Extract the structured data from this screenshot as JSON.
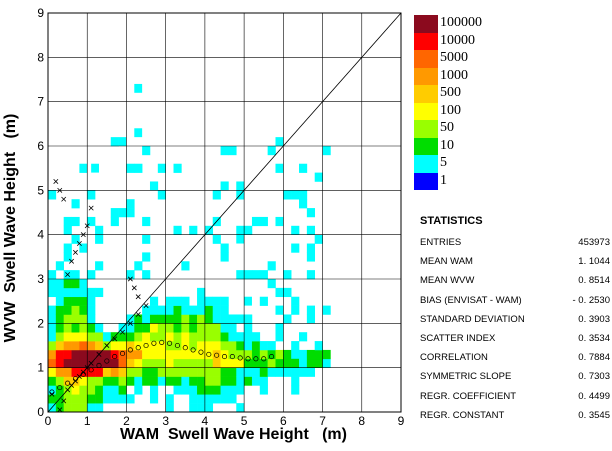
{
  "chart_data": {
    "type": "heatmap",
    "xlabel": "WAM  Swell Wave Height   (m)",
    "ylabel": "WVW  Swell Wave Height   (m)",
    "xlim": [
      0,
      9
    ],
    "ylim": [
      0,
      9
    ],
    "xticks": [
      "0",
      "1",
      "2",
      "3",
      "4",
      "5",
      "6",
      "7",
      "8",
      "9"
    ],
    "yticks": [
      "0",
      "1",
      "2",
      "3",
      "4",
      "5",
      "6",
      "7",
      "8",
      "9"
    ],
    "grid": true,
    "diagonal_line": true,
    "bin_size": 0.2,
    "colorbar": {
      "labels": [
        "100000",
        "10000",
        "5000",
        "1000",
        "500",
        "100",
        "50",
        "10",
        "5",
        "1"
      ],
      "colors": [
        "#8b0a1e",
        "#ff0000",
        "#ff6600",
        "#ff9900",
        "#ffcc00",
        "#ffff00",
        "#99ff00",
        "#00dd00",
        "#00ffff",
        "#0000ff"
      ]
    },
    "bin_mean_points": {
      "marker": "open-circle",
      "x": [
        0.1,
        0.3,
        0.5,
        0.7,
        0.9,
        1.1,
        1.3,
        1.5,
        1.7,
        1.9,
        2.1,
        2.3,
        2.5,
        2.7,
        2.9,
        3.1,
        3.3,
        3.5,
        3.7,
        3.9,
        4.1,
        4.3,
        4.5,
        4.7,
        4.9,
        5.1,
        5.3,
        5.5,
        5.7
      ],
      "y": [
        0.45,
        0.55,
        0.65,
        0.75,
        0.85,
        0.95,
        1.05,
        1.15,
        1.25,
        1.32,
        1.4,
        1.45,
        1.5,
        1.55,
        1.57,
        1.55,
        1.5,
        1.45,
        1.4,
        1.35,
        1.3,
        1.28,
        1.25,
        1.25,
        1.22,
        1.2,
        1.2,
        1.2,
        1.25
      ]
    },
    "bin_mean_crosses": {
      "marker": "x",
      "x": [
        0.1,
        0.3,
        0.4,
        0.5,
        0.6,
        0.7,
        0.8,
        0.9,
        1.0,
        1.1,
        1.3,
        1.5,
        1.7,
        1.9,
        2.1,
        2.3,
        2.5,
        0.5,
        0.6,
        0.7,
        0.8,
        0.9,
        1.0,
        1.1,
        0.4,
        0.3,
        0.2,
        2.2,
        2.3,
        2.1
      ],
      "y": [
        0.4,
        0.05,
        0.25,
        0.5,
        0.6,
        0.7,
        0.8,
        0.9,
        1.0,
        1.1,
        1.3,
        1.5,
        1.65,
        1.8,
        2.0,
        2.2,
        2.4,
        3.1,
        3.4,
        3.6,
        3.8,
        4.0,
        4.2,
        4.6,
        4.8,
        5.0,
        5.2,
        2.8,
        2.6,
        3.0
      ]
    },
    "statistics": {
      "title": "STATISTICS",
      "rows": [
        {
          "label": "ENTRIES",
          "value": "453973"
        },
        {
          "label": "MEAN WAM",
          "value": "1. 1044"
        },
        {
          "label": "MEAN WVW",
          "value": "0. 8514"
        },
        {
          "label": "BIAS (ENVISAT - WAM)",
          "value": "- 0. 2530"
        },
        {
          "label": "STANDARD DEVIATION",
          "value": "0. 3903"
        },
        {
          "label": "SCATTER INDEX",
          "value": "0. 3534"
        },
        {
          "label": "CORRELATION",
          "value": "0. 7884"
        },
        {
          "label": "SYMMETRIC SLOPE",
          "value": "0. 7303"
        },
        {
          "label": "REGR. COEFFICIENT",
          "value": "0. 4499"
        },
        {
          "label": "REGR. CONSTANT",
          "value": "0. 3545"
        }
      ]
    }
  }
}
